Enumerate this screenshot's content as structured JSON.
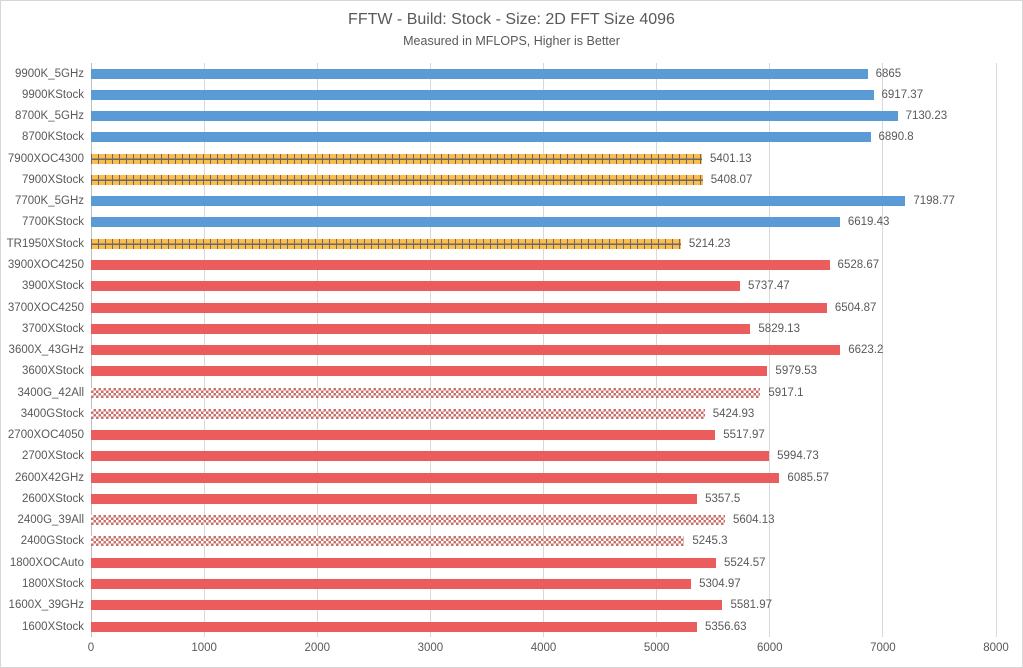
{
  "page": {
    "title": "FFTW - Build: Stock - Size: 2D FFT Size 4096",
    "subtitle": "Measured in MFLOPS, Higher is Better"
  },
  "chart_data": {
    "type": "bar",
    "orientation": "horizontal",
    "title": "FFTW - Build: Stock - Size: 2D FFT Size 4096",
    "subtitle": "Measured in MFLOPS, Higher is Better",
    "xlabel": "",
    "ylabel": "",
    "value_unit": "MFLOPS",
    "xlim": [
      0,
      8000
    ],
    "x_ticks": [
      0,
      1000,
      2000,
      3000,
      4000,
      5000,
      6000,
      7000,
      8000
    ],
    "grid": true,
    "legend": "none",
    "categories": [
      "9900K_5GHz",
      "9900KStock",
      "8700K_5GHz",
      "8700KStock",
      "7900XOC4300",
      "7900XStock",
      "7700K_5GHz",
      "7700KStock",
      "TR1950XStock",
      "3900XOC4250",
      "3900XStock",
      "3700XOC4250",
      "3700XStock",
      "3600X_43GHz",
      "3600XStock",
      "3400G_42All",
      "3400GStock",
      "2700XOC4050",
      "2700XStock",
      "2600X42GHz",
      "2600XStock",
      "2400G_39All",
      "2400GStock",
      "1800XOCAuto",
      "1800XStock",
      "1600X_39GHz",
      "1600XStock"
    ],
    "values": [
      6865,
      6917.37,
      7130.23,
      6890.8,
      5401.13,
      5408.07,
      7198.77,
      6619.43,
      5214.23,
      6528.67,
      5737.47,
      6504.87,
      5829.13,
      6623.2,
      5979.53,
      5917.1,
      5424.93,
      5517.97,
      5994.73,
      6085.57,
      5357.5,
      5604.13,
      5245.3,
      5524.57,
      5304.97,
      5581.97,
      5356.63
    ],
    "value_labels": [
      "6865",
      "6917.37",
      "7130.23",
      "6890.8",
      "5401.13",
      "5408.07",
      "7198.77",
      "6619.43",
      "5214.23",
      "6528.67",
      "5737.47",
      "6504.87",
      "5829.13",
      "6623.2",
      "5979.53",
      "5917.1",
      "5424.93",
      "5517.97",
      "5994.73",
      "6085.57",
      "5357.5",
      "5604.13",
      "5245.3",
      "5524.57",
      "5304.97",
      "5581.97",
      "5356.63"
    ],
    "bar_styles": [
      "blue-solid",
      "blue-solid",
      "blue-solid",
      "blue-solid",
      "gold-dashed",
      "gold-dashed",
      "blue-solid",
      "blue-solid",
      "gold-dashed",
      "red-solid",
      "red-solid",
      "red-solid",
      "red-solid",
      "red-solid",
      "red-solid",
      "red-checker",
      "red-checker",
      "red-solid",
      "red-solid",
      "red-solid",
      "red-solid",
      "red-checker",
      "red-checker",
      "red-solid",
      "red-solid",
      "red-solid",
      "red-solid"
    ],
    "colors": {
      "blue": "#5B9BD5",
      "red": "#EB5C5C",
      "gold": "#FBBE4D",
      "gold_pattern_dark": "#6F6767",
      "checker_red": "#C9706B",
      "text": "#595959",
      "gridline": "#D9D9D9",
      "axis_line": "#BFBFBF"
    }
  }
}
